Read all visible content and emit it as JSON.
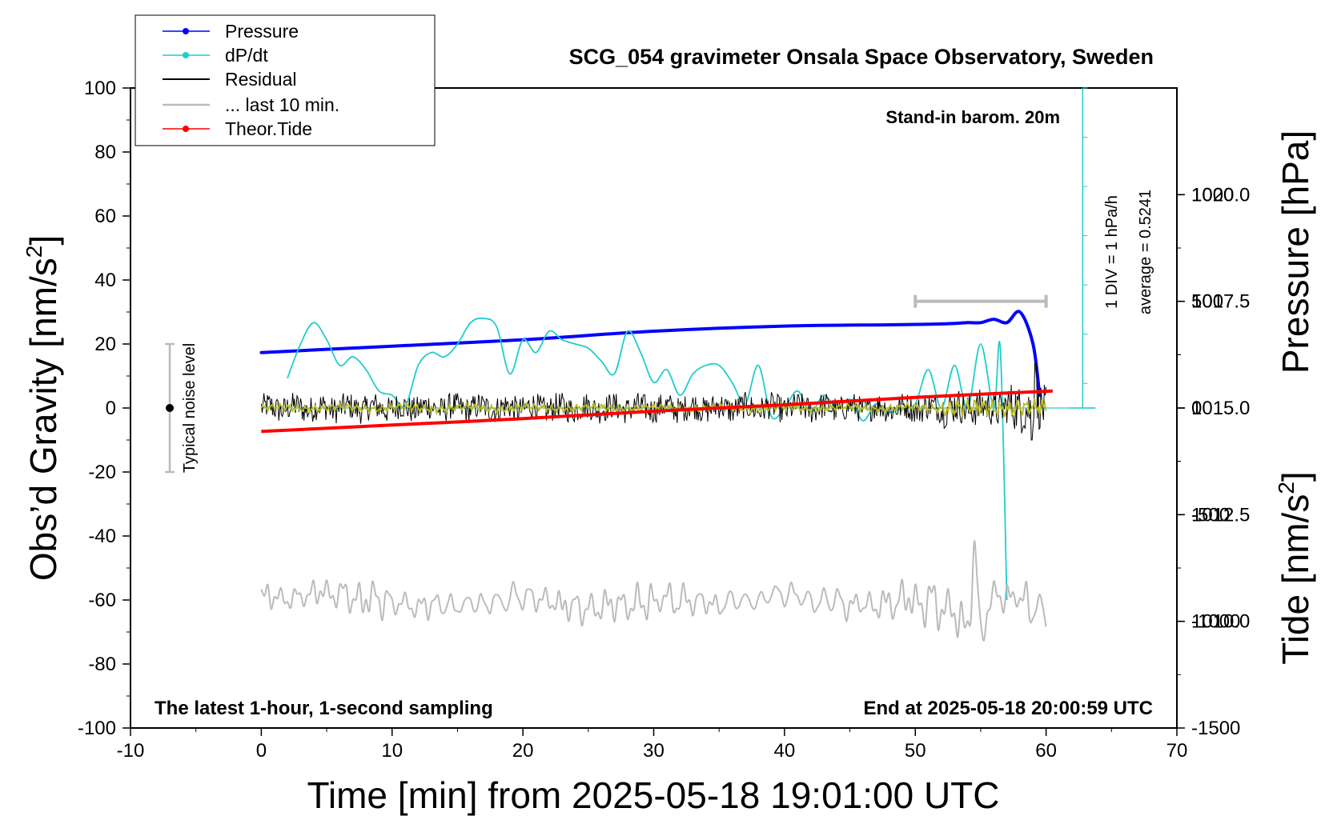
{
  "chart_data": {
    "type": "line",
    "title": "SCG_054 gravimeter Onsala Space Observatory, Sweden",
    "xlabel": "Time [min] from 2025-05-18 19:01:00 UTC",
    "ylabel_left_main": "Obs’d Gravity [nm/s",
    "ylabel_left_sup": "2",
    "ylabel_left_end": "]",
    "ylabel_right_pressure": "Pressure [hPa]",
    "ylabel_right_tide_main": "Tide [nm/s",
    "ylabel_right_tide_sup": "2",
    "ylabel_right_tide_end": "]",
    "xlim": [
      -10,
      70
    ],
    "ylim_left": [
      -100,
      100
    ],
    "pressure_lim": [
      1007.5,
      1022.5
    ],
    "tide_lim": [
      -1500,
      1500
    ],
    "x_ticks": [
      "-10",
      "0",
      "10",
      "20",
      "30",
      "40",
      "50",
      "60",
      "70"
    ],
    "y_ticks_left": [
      "100",
      "80",
      "60",
      "40",
      "20",
      "0",
      "-20",
      "-40",
      "-60",
      "-80",
      "-100"
    ],
    "y_ticks_pressure": [
      "1020.0",
      "1017.5",
      "1015.0",
      "1012.5",
      "1010.0"
    ],
    "y_ticks_tide": [
      "1000",
      "500",
      "0",
      "-500",
      "-1000",
      "-1500"
    ],
    "legend": {
      "placement": "top-left",
      "items": [
        {
          "label": "Pressure",
          "color": "#0000ff",
          "style": "line-dot"
        },
        {
          "label": "dP/dt",
          "color": "#22cccc",
          "style": "line-dot"
        },
        {
          "label": "Residual",
          "color": "#000000",
          "style": "line"
        },
        {
          "label": "... last 10 min.",
          "color": "#bbbbbb",
          "style": "line"
        },
        {
          "label": "Theor.Tide",
          "color": "#ff0000",
          "style": "line-dot"
        }
      ]
    },
    "annotations": {
      "barometer": "Stand-in barom. 20m",
      "latest": "The latest 1-hour, 1-second sampling",
      "end_time": "End at 2025-05-18 20:00:59 UTC",
      "noise_label": "Typical noise level",
      "div_label": "1 DIV = 1 hPa/h",
      "average_label": "average = 0.5241"
    },
    "noise_bar": {
      "x": -7,
      "y": 0,
      "low": -20,
      "high": 20
    },
    "last10_bracket": {
      "x_start": 50,
      "x_end": 60,
      "tide_value": 500
    },
    "dpdt_baseline_pressure": 1015.0,
    "series": [
      {
        "name": "Pressure",
        "axis": "pressure_hPa",
        "color": "#0000ff",
        "x": [
          0,
          10,
          20,
          30,
          40,
          48,
          52,
          54,
          55,
          56,
          57,
          58,
          59,
          59.5
        ],
        "y": [
          1016.3,
          1016.45,
          1016.6,
          1016.8,
          1016.92,
          1016.95,
          1016.97,
          1017.0,
          1017.0,
          1017.08,
          1017.0,
          1017.25,
          1016.5,
          1015.3
        ]
      },
      {
        "name": "dP/dt",
        "axis": "pressure_hPa",
        "color": "#22cccc",
        "x": [
          2,
          3,
          4,
          5,
          6,
          7,
          8,
          9,
          10,
          11,
          12,
          13,
          14,
          15,
          16,
          17,
          18,
          19,
          20,
          21,
          22,
          23,
          24,
          25,
          26,
          27,
          28,
          29,
          30,
          31,
          32,
          33,
          34,
          35,
          36,
          37,
          38,
          39,
          40,
          41,
          42,
          43,
          44,
          45,
          46,
          47,
          48,
          49,
          50,
          51,
          52,
          53,
          54,
          55,
          56,
          56.5,
          57
        ],
        "y": [
          1015.7,
          1016.5,
          1017.0,
          1016.6,
          1016.0,
          1016.2,
          1015.9,
          1015.4,
          1015.3,
          1015.05,
          1016.0,
          1016.3,
          1016.2,
          1016.5,
          1017.0,
          1017.1,
          1016.9,
          1015.8,
          1016.6,
          1016.3,
          1016.8,
          1016.6,
          1016.5,
          1016.4,
          1016.1,
          1015.8,
          1016.8,
          1016.3,
          1015.6,
          1015.9,
          1015.3,
          1015.8,
          1016.0,
          1016.0,
          1015.6,
          1015.1,
          1016.0,
          1014.8,
          1015.0,
          1015.4,
          1014.9,
          1015.3,
          1015.0,
          1015.2,
          1014.7,
          1015.1,
          1014.9,
          1015.0,
          1015.1,
          1015.9,
          1015.0,
          1016.0,
          1015.0,
          1016.5,
          1015.0,
          1016.4,
          1010.5
        ]
      },
      {
        "name": "Residual",
        "axis": "gravity_nm_s2",
        "color": "#000000",
        "x": [
          0,
          60
        ],
        "y": [
          0,
          0
        ],
        "approx_range": [
          -10,
          15
        ]
      },
      {
        "name": "Residual (smoothed)",
        "axis": "gravity_nm_s2",
        "color": "#bbbb22",
        "x": [
          0,
          60
        ],
        "y": [
          0,
          0
        ]
      },
      {
        "name": "... last 10 min.",
        "axis": "gravity_nm_s2",
        "color": "#bbbbbb",
        "x": [
          0,
          5,
          10,
          15,
          20,
          25,
          30,
          35,
          40,
          45,
          50,
          52,
          54,
          54.5,
          55,
          56,
          58,
          60
        ],
        "y": [
          -60,
          -58,
          -61,
          -62,
          -59,
          -63,
          -60,
          -61,
          -58,
          -62,
          -60,
          -62,
          -68,
          -46,
          -70,
          -60,
          -58,
          -66
        ]
      },
      {
        "name": "Theor.Tide",
        "axis": "tide_nm_s2",
        "color": "#ff0000",
        "x": [
          0,
          10,
          20,
          30,
          40,
          50,
          60.5
        ],
        "y": [
          -110,
          -80,
          -50,
          -15,
          15,
          50,
          80
        ]
      }
    ]
  }
}
